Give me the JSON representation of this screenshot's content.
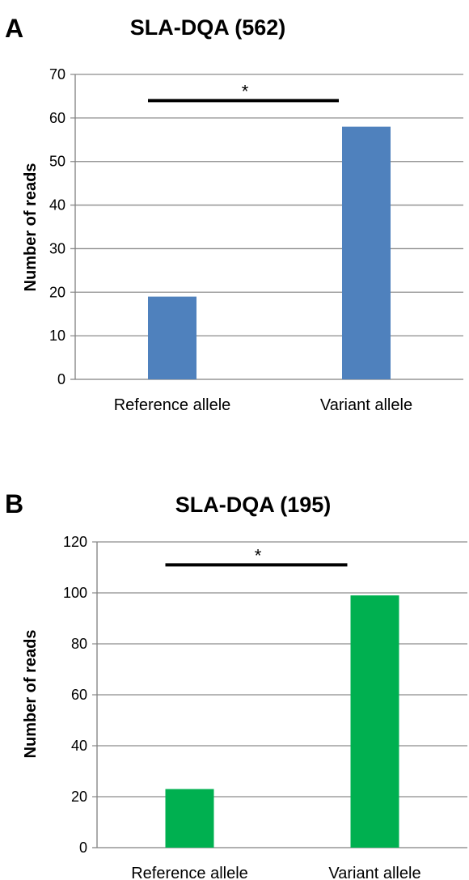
{
  "chart_data": [
    {
      "panel": "A",
      "type": "bar",
      "title": "SLA-DQA (562)",
      "ylabel": "Number of reads",
      "xlabel": "",
      "categories": [
        "Reference allele",
        "Variant allele"
      ],
      "values": [
        19,
        58
      ],
      "ylim": [
        0,
        70
      ],
      "yticks": [
        0,
        10,
        20,
        30,
        40,
        50,
        60,
        70
      ],
      "grid": true,
      "bar_color": "#4F81BD",
      "annotation": {
        "text": "*",
        "bracket_y": 64
      }
    },
    {
      "panel": "B",
      "type": "bar",
      "title": "SLA-DQA (195)",
      "ylabel": "Number of reads",
      "xlabel": "",
      "categories": [
        "Reference allele",
        "Variant allele"
      ],
      "values": [
        23,
        99
      ],
      "ylim": [
        0,
        120
      ],
      "yticks": [
        0,
        20,
        40,
        60,
        80,
        100,
        120
      ],
      "grid": true,
      "bar_color": "#00B050",
      "annotation": {
        "text": "*",
        "bracket_y": 111
      }
    }
  ]
}
